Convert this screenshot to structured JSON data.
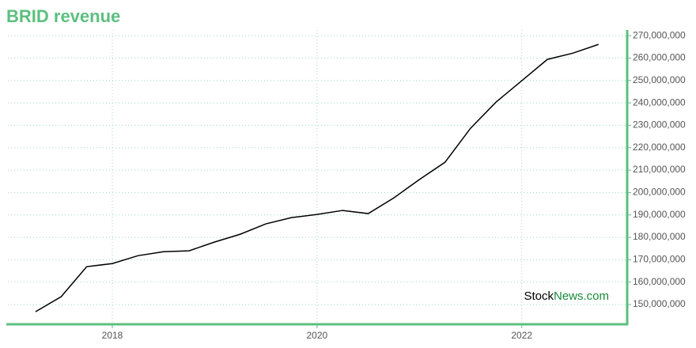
{
  "chart_data": {
    "type": "line",
    "title": "BRID revenue",
    "watermark": [
      "Stock",
      "News.com"
    ],
    "x": [
      2017.25,
      2017.5,
      2017.75,
      2018,
      2018.25,
      2018.5,
      2018.75,
      2019,
      2019.25,
      2019.5,
      2019.75,
      2020,
      2020.25,
      2020.5,
      2020.75,
      2021,
      2021.25,
      2021.5,
      2021.75,
      2022,
      2022.25,
      2022.5,
      2022.75
    ],
    "values": [
      146800000,
      153500000,
      166900000,
      168300000,
      171800000,
      173600000,
      174000000,
      177900000,
      181400000,
      186000000,
      188800000,
      190200000,
      192000000,
      190600000,
      197600000,
      205800000,
      213500000,
      228700000,
      240400000,
      249900000,
      259400000,
      262200000,
      266100000
    ],
    "color": "#000000",
    "xlim": [
      2016.98,
      2023.03
    ],
    "xticks": [
      2018,
      2020,
      2022
    ],
    "ylim": [
      141200000,
      272500000
    ],
    "yticks": [
      {
        "value": 150000000,
        "label": "150,000,000"
      },
      {
        "value": 160000000,
        "label": "160,000,000"
      },
      {
        "value": 170000000,
        "label": "170,000,000"
      },
      {
        "value": 180000000,
        "label": "180,000,000"
      },
      {
        "value": 190000000,
        "label": "190,000,000"
      },
      {
        "value": 200000000,
        "label": "200,000,000"
      },
      {
        "value": 210000000,
        "label": "210,000,000"
      },
      {
        "value": 220000000,
        "label": "220,000,000"
      },
      {
        "value": 230000000,
        "label": "230,000,000"
      },
      {
        "value": 240000000,
        "label": "240,000,000"
      },
      {
        "value": 250000000,
        "label": "250,000,000"
      },
      {
        "value": 260000000,
        "label": "260,000,000"
      },
      {
        "value": 270000000,
        "label": "270,000,000"
      }
    ],
    "grid": true,
    "axis_color": "#5cbf7f",
    "grid_color": "#9fd8c0"
  }
}
